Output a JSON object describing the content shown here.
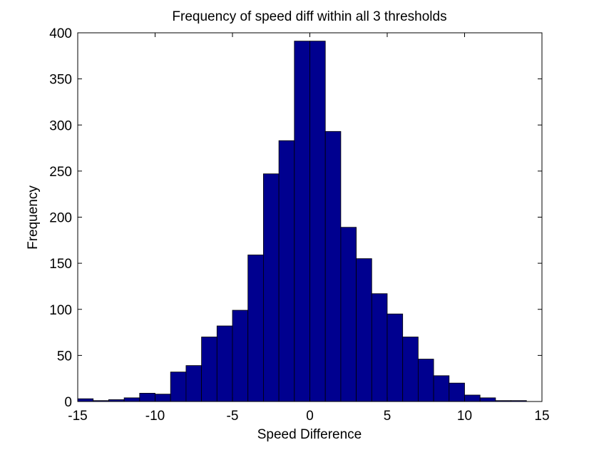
{
  "chart_data": {
    "type": "bar",
    "title": "Frequency of speed diff within all 3 thresholds",
    "xlabel": "Speed Difference",
    "ylabel": "Frequency",
    "xlim": [
      -15,
      15
    ],
    "ylim": [
      0,
      400
    ],
    "xticks": [
      "-15",
      "-10",
      "-5",
      "0",
      "5",
      "10",
      "15"
    ],
    "yticks": [
      "0",
      "50",
      "100",
      "150",
      "200",
      "250",
      "300",
      "350",
      "400"
    ],
    "bin_centers": [
      -14.5,
      -13.5,
      -12.5,
      -11.5,
      -10.5,
      -9.5,
      -8.5,
      -7.5,
      -6.5,
      -5.5,
      -4.5,
      -3.5,
      -2.5,
      -1.5,
      -0.5,
      0.5,
      1.5,
      2.5,
      3.5,
      4.5,
      5.5,
      6.5,
      7.5,
      8.5,
      9.5,
      10.5,
      11.5,
      12.5,
      13.5
    ],
    "bin_width": 1,
    "values": [
      3,
      1,
      2,
      4,
      9,
      8,
      32,
      39,
      70,
      82,
      99,
      159,
      247,
      283,
      391,
      391,
      293,
      189,
      155,
      117,
      95,
      70,
      46,
      28,
      20,
      7,
      4,
      1,
      1
    ],
    "grid": false,
    "legend": "none",
    "colors": {
      "bar_fill": "#00008f",
      "bar_edge": "#000000",
      "axes": "#000000",
      "background": "#ffffff"
    }
  }
}
